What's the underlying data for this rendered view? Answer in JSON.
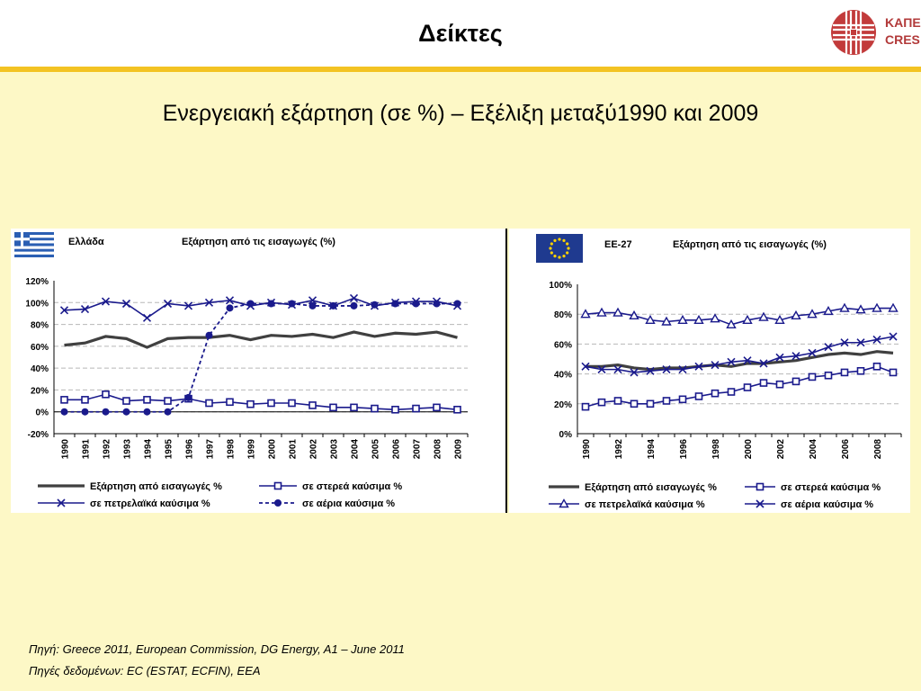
{
  "header": {
    "title": "Δείκτες",
    "logo_line1": "ΚΑΠΕ",
    "logo_line2": "CRES"
  },
  "subtitle": "Ενεργειακή εξάρτηση (σε %) – Εξέλιξη μεταξύ1990 και 2009",
  "colors": {
    "dependency": "#404040",
    "blue": "#1a1a8c",
    "header_bar": "#f3c323",
    "background": "#fdf8c6"
  },
  "chart_data": [
    {
      "type": "line",
      "region": "Ελλάδα",
      "title": "Εξάρτηση από τις εισαγωγές (%)",
      "flag": "greek-flag-icon",
      "ylim": [
        -20,
        120
      ],
      "y_ticks": [
        "120%",
        "100%",
        "80%",
        "60%",
        "40%",
        "20%",
        "0%",
        "-20%"
      ],
      "x": [
        "1990",
        "1991",
        "1992",
        "1993",
        "1994",
        "1995",
        "1996",
        "1997",
        "1998",
        "1999",
        "2000",
        "2001",
        "2002",
        "2003",
        "2004",
        "2005",
        "2006",
        "2007",
        "2008",
        "2009"
      ],
      "grid": true,
      "legend_position": "bottom",
      "series": [
        {
          "name": "Εξάρτηση από εισαγωγές %",
          "values": [
            61,
            63,
            69,
            67,
            59,
            67,
            68,
            68,
            70,
            66,
            70,
            69,
            71,
            68,
            73,
            69,
            72,
            71,
            73,
            68
          ]
        },
        {
          "name": "σε στερεά καύσιμα %",
          "values": [
            11,
            11,
            16,
            10,
            11,
            10,
            12,
            8,
            9,
            7,
            8,
            8,
            6,
            4,
            4,
            3,
            2,
            3,
            4,
            2
          ]
        },
        {
          "name": "σε πετρελαϊκά καύσιμα %",
          "values": [
            93,
            94,
            101,
            99,
            86,
            99,
            97,
            100,
            102,
            97,
            100,
            98,
            102,
            97,
            104,
            97,
            100,
            101,
            101,
            97
          ]
        },
        {
          "name": "σε αέρια καύσιμα %",
          "values": [
            0,
            0,
            0,
            0,
            0,
            0,
            13,
            70,
            95,
            99,
            99,
            99,
            97,
            97,
            97,
            98,
            99,
            99,
            99,
            99
          ]
        }
      ]
    },
    {
      "type": "line",
      "region": "ΕΕ-27",
      "title": "Εξάρτηση από τις εισαγωγές (%)",
      "flag": "eu-flag-icon",
      "ylim": [
        0,
        100
      ],
      "y_ticks": [
        "100%",
        "80%",
        "60%",
        "40%",
        "20%",
        "0%"
      ],
      "x": [
        "1990",
        "1991",
        "1992",
        "1993",
        "1994",
        "1995",
        "1996",
        "1997",
        "1998",
        "1999",
        "2000",
        "2001",
        "2002",
        "2003",
        "2004",
        "2005",
        "2006",
        "2007",
        "2008",
        "2009"
      ],
      "x_tick_labels": [
        "1990",
        "1992",
        "1994",
        "1996",
        "1998",
        "2000",
        "2002",
        "2004",
        "2006",
        "2008"
      ],
      "grid": true,
      "legend_position": "bottom",
      "series": [
        {
          "name": "Εξάρτηση από εισαγωγές %",
          "values": [
            45,
            45,
            46,
            44,
            43,
            44,
            44,
            45,
            46,
            45,
            47,
            47,
            48,
            49,
            51,
            53,
            54,
            53,
            55,
            54
          ]
        },
        {
          "name": "σε στερεά καύσιμα %",
          "values": [
            18,
            21,
            22,
            20,
            20,
            22,
            23,
            25,
            27,
            28,
            31,
            34,
            33,
            35,
            38,
            39,
            41,
            42,
            45,
            41
          ]
        },
        {
          "name": "σε πετρελαϊκά καύσιμα %",
          "values": [
            80,
            81,
            81,
            79,
            76,
            75,
            76,
            76,
            77,
            73,
            76,
            78,
            76,
            79,
            80,
            82,
            84,
            83,
            84,
            84
          ]
        },
        {
          "name": "σε αέρια καύσιμα %",
          "values": [
            45,
            43,
            43,
            41,
            42,
            43,
            43,
            45,
            46,
            48,
            49,
            47,
            51,
            52,
            54,
            58,
            61,
            61,
            63,
            65
          ]
        }
      ]
    }
  ],
  "sources": {
    "line1": "Πηγή: Greece 2011, European Commission, DG Energy, A1 – June 2011",
    "line2": "Πηγές δεδομένων: EC (ESTAT, ECFIN), EEA"
  }
}
